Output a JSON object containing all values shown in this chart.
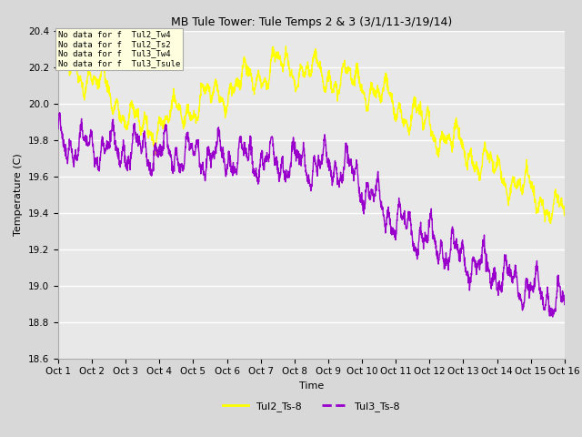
{
  "title": "MB Tule Tower: Tule Temps 2 & 3 (3/1/11-3/19/14)",
  "xlabel": "Time",
  "ylabel": "Temperature (C)",
  "ylim": [
    18.6,
    20.4
  ],
  "xlim": [
    0,
    15
  ],
  "xtick_labels": [
    "Oct 1",
    "Oct 2",
    "Oct 3",
    "Oct 4",
    "Oct 5",
    "Oct 6",
    "Oct 7",
    "Oct 8",
    "Oct 9",
    "Oct 10",
    "Oct 11",
    "Oct 12",
    "Oct 13",
    "Oct 14",
    "Oct 15",
    "Oct 16"
  ],
  "ytick_values": [
    18.6,
    18.8,
    19.0,
    19.2,
    19.4,
    19.6,
    19.8,
    20.0,
    20.2,
    20.4
  ],
  "color_tul2": "#ffff00",
  "color_tul3": "#9900cc",
  "legend_entries": [
    "Tul2_Ts-8",
    "Tul3_Ts-8"
  ],
  "no_data_lines": [
    "No data for f  Tul2_Tw4",
    "No data for f  Tul2_Ts2",
    "No data for f  Tul3_Tw4",
    "No data for f  Tul3_Tsule"
  ],
  "fig_width": 6.4,
  "fig_height": 4.8,
  "dpi": 100,
  "plot_bg_color": "#e8e8e8",
  "fig_bg_color": "#d8d8d8",
  "grid_color": "#ffffff",
  "title_fontsize": 9,
  "axis_label_fontsize": 8,
  "tick_fontsize": 7.5,
  "legend_fontsize": 8
}
